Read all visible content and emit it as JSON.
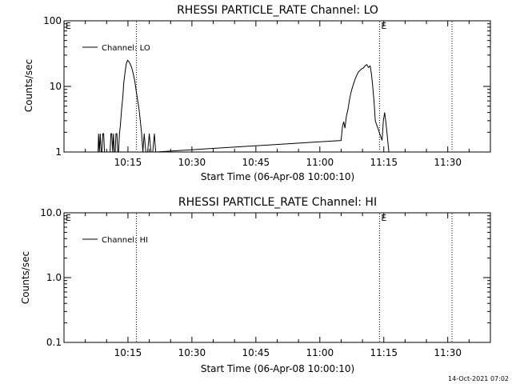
{
  "footer": {
    "timestamp": "14-Oct-2021 07:02"
  },
  "chart_data": [
    {
      "type": "line",
      "title": "RHESSI PARTICLE_RATE Channel: LO",
      "xlabel": "Start Time (06-Apr-08 10:00:10)",
      "ylabel": "Counts/sec",
      "yscale": "log",
      "ylim": [
        1,
        100
      ],
      "xlim_minutes": [
        0,
        100
      ],
      "x_ticks": [
        {
          "t": 15,
          "label": "10:15"
        },
        {
          "t": 30,
          "label": "10:30"
        },
        {
          "t": 45,
          "label": "10:45"
        },
        {
          "t": 60,
          "label": "11:00"
        },
        {
          "t": 75,
          "label": "11:15"
        },
        {
          "t": 90,
          "label": "11:30"
        }
      ],
      "y_ticks": [
        {
          "v": 1,
          "label": "1"
        },
        {
          "v": 10,
          "label": "10"
        },
        {
          "v": 100,
          "label": "100"
        }
      ],
      "legend": {
        "position": "top-left",
        "entries": [
          "Channel: LO"
        ]
      },
      "markers": [
        {
          "t": 0,
          "label": "E"
        },
        {
          "t": 74,
          "label": "E"
        }
      ],
      "vlines_t": [
        17.0,
        74,
        91
      ],
      "series": [
        {
          "name": "Channel: LO",
          "x": [
            8.0,
            8.1,
            8.3,
            8.5,
            8.7,
            8.9,
            9.1,
            9.3,
            9.5,
            10.8,
            11.0,
            11.2,
            11.4,
            11.6,
            11.8,
            12.0,
            12.2,
            12.4,
            12.6,
            12.8,
            13.0,
            13.2,
            13.3,
            13.5,
            13.8,
            14.0,
            14.3,
            14.6,
            14.9,
            15.2,
            15.5,
            15.8,
            16.0,
            16.3,
            16.6,
            17.0,
            17.3,
            17.6,
            17.9,
            18.2,
            18.5,
            18.8,
            19.2,
            19.6,
            20.0,
            20.4,
            20.8,
            21.2,
            21.5,
            65.0,
            65.3,
            65.6,
            65.9,
            66.2,
            66.6,
            67.0,
            67.4,
            67.8,
            68.2,
            68.6,
            69.0,
            69.4,
            69.8,
            70.2,
            70.6,
            71.0,
            71.4,
            71.8,
            72.1,
            72.4,
            72.7,
            73.0,
            74.6,
            74.9,
            75.2,
            75.5,
            75.8,
            76.2
          ],
          "y": [
            1,
            1.9,
            1,
            1.9,
            1,
            1,
            1.9,
            1.9,
            1,
            1,
            1.9,
            1.9,
            1,
            1.9,
            1,
            1,
            1.9,
            1.9,
            1,
            1,
            1.9,
            2.5,
            3.0,
            4.5,
            7,
            11,
            16,
            22,
            25,
            24,
            22,
            20,
            18,
            15,
            12,
            8,
            6,
            4.5,
            3.0,
            1.9,
            1,
            1.9,
            1,
            1,
            1.9,
            1,
            1,
            1.9,
            1,
            1.5,
            2.4,
            2.9,
            2.3,
            3.4,
            4.5,
            6.5,
            8.5,
            10.5,
            12.5,
            14.5,
            16.5,
            17.5,
            18.5,
            19.0,
            20.5,
            21.5,
            19.5,
            20.5,
            15.5,
            10,
            6,
            3.0,
            1.5,
            3.0,
            4.0,
            2.8,
            1.8,
            1
          ]
        }
      ]
    },
    {
      "type": "line",
      "title": "RHESSI PARTICLE_RATE Channel: HI",
      "xlabel": "Start Time (06-Apr-08 10:00:10)",
      "ylabel": "Counts/sec",
      "yscale": "log",
      "ylim": [
        0.1,
        10.0
      ],
      "xlim_minutes": [
        0,
        100
      ],
      "x_ticks": [
        {
          "t": 15,
          "label": "10:15"
        },
        {
          "t": 30,
          "label": "10:30"
        },
        {
          "t": 45,
          "label": "10:45"
        },
        {
          "t": 60,
          "label": "11:00"
        },
        {
          "t": 75,
          "label": "11:15"
        },
        {
          "t": 90,
          "label": "11:30"
        }
      ],
      "y_ticks": [
        {
          "v": 0.1,
          "label": "0.1"
        },
        {
          "v": 1.0,
          "label": "1.0"
        },
        {
          "v": 10.0,
          "label": "10.0"
        }
      ],
      "legend": {
        "position": "top-left",
        "entries": [
          "Channel: HI"
        ]
      },
      "markers": [
        {
          "t": 0,
          "label": "E"
        },
        {
          "t": 74,
          "label": "E"
        }
      ],
      "vlines_t": [
        17.0,
        74,
        91
      ],
      "series": []
    }
  ]
}
